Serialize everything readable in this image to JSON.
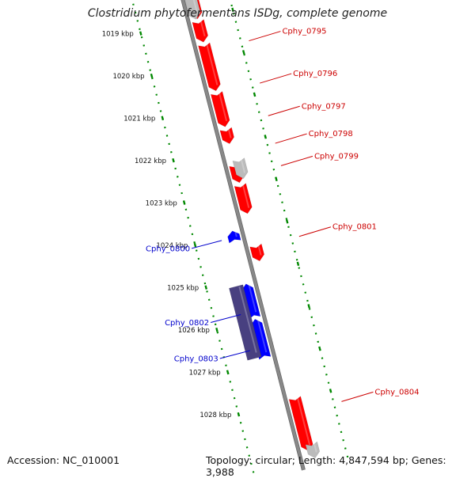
{
  "title": "Clostridium phytofermentans ISDg, complete genome",
  "footer": {
    "accession": "Accession: NC_010001",
    "topology": "Topology: circular; Length: 4,847,594 bp; Genes: 3,988"
  },
  "colors": {
    "forward_gene": "#ff0000",
    "reverse_gene": "#0000ff",
    "rna_gene": "#484080",
    "other_feature": "#bbbbbb",
    "tick_marks": "#008800",
    "backbone": "#888888"
  },
  "kbp_ticks": [
    {
      "pos": 1019,
      "label": "1019 kbp"
    },
    {
      "pos": 1020,
      "label": "1020 kbp"
    },
    {
      "pos": 1021,
      "label": "1021 kbp"
    },
    {
      "pos": 1022,
      "label": "1022 kbp"
    },
    {
      "pos": 1023,
      "label": "1023 kbp"
    },
    {
      "pos": 1024,
      "label": "1024 kbp"
    },
    {
      "pos": 1025,
      "label": "1025 kbp"
    },
    {
      "pos": 1026,
      "label": "1026 kbp"
    },
    {
      "pos": 1027,
      "label": "1027 kbp"
    },
    {
      "pos": 1028,
      "label": "1028 kbp"
    }
  ],
  "forward_labels": [
    {
      "text": "Cphy_0795",
      "at": 1019.78
    },
    {
      "text": "Cphy_0796",
      "at": 1020.78
    },
    {
      "text": "Cphy_0797",
      "at": 1021.55
    },
    {
      "text": "Cphy_0798",
      "at": 1022.2
    },
    {
      "text": "Cphy_0799",
      "at": 1022.73
    },
    {
      "text": "Cphy_0801",
      "at": 1024.4
    },
    {
      "text": "Cphy_0804",
      "at": 1028.3
    }
  ],
  "reverse_labels": [
    {
      "text": "Cphy_0800",
      "at": 1024.05
    },
    {
      "text": "Cphy_0802",
      "at": 1025.8
    },
    {
      "text": "Cphy_0803",
      "at": 1026.65
    }
  ],
  "genes": [
    {
      "start": 1018.42,
      "end": 1019.0,
      "strand": "forward",
      "kind": "gene"
    },
    {
      "start": 1018.42,
      "end": 1019.0,
      "strand": "forward",
      "kind": "other",
      "offset": 10
    },
    {
      "start": 1019.05,
      "end": 1019.55,
      "strand": "forward",
      "kind": "gene"
    },
    {
      "start": 1019.6,
      "end": 1020.7,
      "strand": "forward",
      "kind": "gene"
    },
    {
      "start": 1020.75,
      "end": 1021.55,
      "strand": "forward",
      "kind": "gene"
    },
    {
      "start": 1021.6,
      "end": 1021.95,
      "strand": "forward",
      "kind": "gene"
    },
    {
      "start": 1022.45,
      "end": 1022.87,
      "strand": "forward",
      "kind": "gene"
    },
    {
      "start": 1022.35,
      "end": 1022.8,
      "strand": "forward",
      "kind": "other",
      "offset": 18
    },
    {
      "start": 1022.92,
      "end": 1023.6,
      "strand": "forward",
      "kind": "gene"
    },
    {
      "start": 1024.35,
      "end": 1024.72,
      "strand": "forward",
      "kind": "gene"
    },
    {
      "start": 1023.9,
      "end": 1024.15,
      "strand": "reverse",
      "kind": "gene"
    },
    {
      "start": 1025.15,
      "end": 1025.95,
      "strand": "reverse",
      "kind": "gene"
    },
    {
      "start": 1025.98,
      "end": 1026.9,
      "strand": "reverse",
      "kind": "gene"
    },
    {
      "start": 1025.15,
      "end": 1026.85,
      "strand": "reverse",
      "kind": "rna"
    },
    {
      "start": 1027.95,
      "end": 1029.2,
      "strand": "forward",
      "kind": "gene"
    },
    {
      "start": 1029.05,
      "end": 1029.4,
      "strand": "forward",
      "kind": "other",
      "offset": 18
    }
  ]
}
